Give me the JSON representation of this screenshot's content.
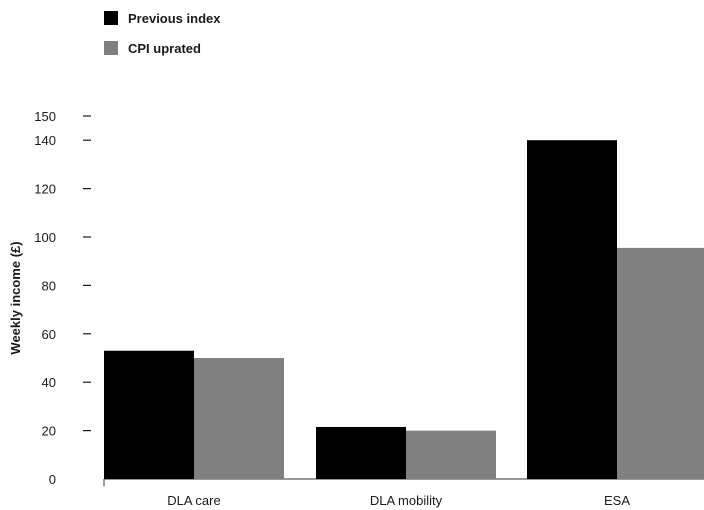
{
  "chart_data": {
    "type": "bar",
    "categories": [
      "DLA care",
      "DLA mobility",
      "ESA"
    ],
    "series": [
      {
        "name": "Previous index",
        "values": [
          53,
          21.5,
          140
        ],
        "color": "#000000"
      },
      {
        "name": "CPI uprated",
        "values": [
          50,
          20,
          95.5
        ],
        "color": "#808080"
      }
    ],
    "title": "",
    "xlabel": "",
    "ylabel": "Weekly income (£)",
    "ylim": [
      0,
      150
    ],
    "yticks": [
      "0",
      "20",
      "40",
      "60",
      "80",
      "100",
      "120",
      "140",
      "150"
    ],
    "grid": false,
    "legend_position": "top-left"
  }
}
